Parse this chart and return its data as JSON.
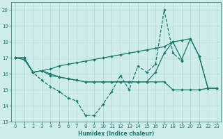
{
  "xlabel": "Humidex (Indice chaleur)",
  "x": [
    0,
    1,
    2,
    3,
    4,
    5,
    6,
    7,
    8,
    9,
    10,
    11,
    12,
    13,
    14,
    15,
    16,
    17,
    18,
    19,
    20,
    21,
    22,
    23
  ],
  "lineA": [
    17.0,
    17.0,
    16.1,
    16.2,
    16.3,
    16.5,
    16.6,
    16.7,
    16.8,
    16.9,
    17.0,
    17.1,
    17.2,
    17.3,
    17.4,
    17.5,
    17.6,
    17.7,
    18.0,
    18.1,
    18.2,
    17.1,
    15.1,
    15.1
  ],
  "lineB": [
    17.0,
    17.0,
    16.1,
    15.6,
    15.2,
    14.9,
    14.5,
    14.3,
    13.4,
    13.4,
    14.1,
    14.9,
    15.9,
    15.0,
    16.5,
    16.1,
    16.6,
    20.0,
    17.3,
    16.8,
    null,
    null,
    null,
    null
  ],
  "lineC": [
    17.0,
    16.9,
    16.1,
    16.2,
    16.0,
    15.8,
    15.7,
    15.6,
    15.5,
    15.5,
    15.5,
    15.5,
    15.5,
    15.5,
    15.5,
    15.5,
    16.1,
    17.3,
    18.0,
    16.9,
    18.2,
    17.1,
    15.1,
    15.1
  ],
  "lineD": [
    17.0,
    17.0,
    16.1,
    16.2,
    15.9,
    15.8,
    15.7,
    15.6,
    15.5,
    15.5,
    15.5,
    15.5,
    15.5,
    15.5,
    15.5,
    15.5,
    15.5,
    15.5,
    15.0,
    15.0,
    15.0,
    15.0,
    15.1,
    15.1
  ],
  "color": "#1a7a6e",
  "bg_color": "#cdecea",
  "grid_color": "#aad6d2",
  "ylim": [
    13.0,
    20.5
  ],
  "xlim": [
    -0.5,
    23.5
  ],
  "yticks": [
    13,
    14,
    15,
    16,
    17,
    18,
    19,
    20
  ],
  "xticks": [
    0,
    1,
    2,
    3,
    4,
    5,
    6,
    7,
    8,
    9,
    10,
    11,
    12,
    13,
    14,
    15,
    16,
    17,
    18,
    19,
    20,
    21,
    22,
    23
  ]
}
